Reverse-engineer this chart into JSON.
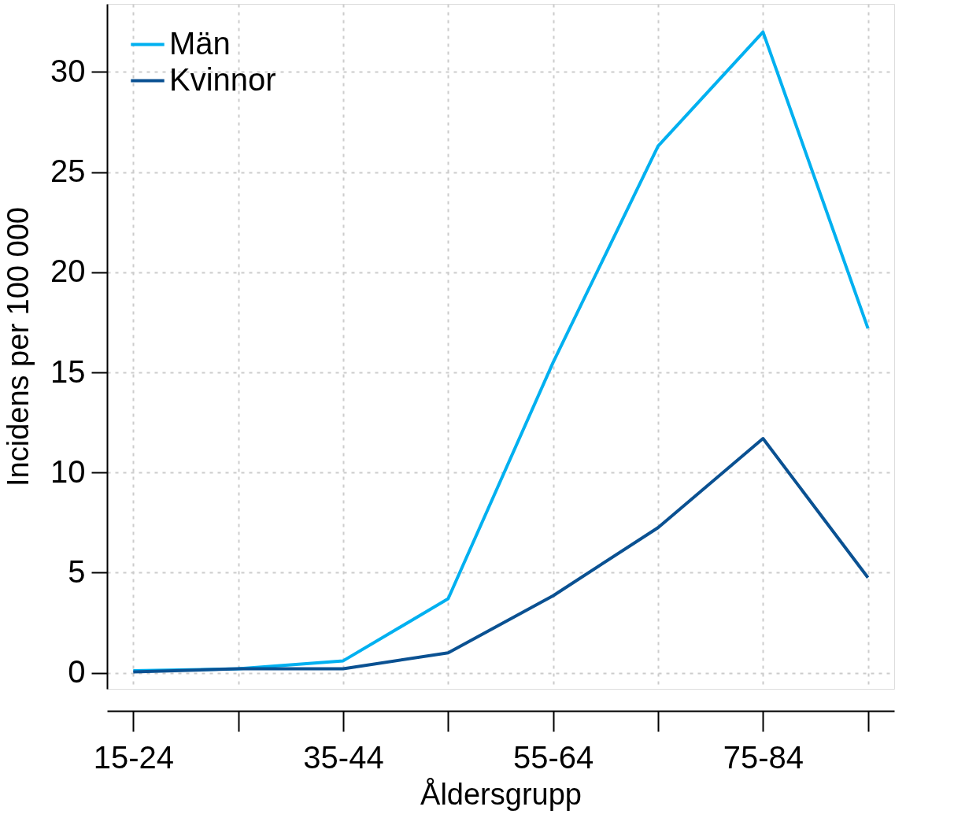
{
  "chart_data": {
    "type": "line",
    "xlabel": "Åldersgrupp",
    "ylabel": "Incidens per 100 000",
    "categories": [
      "15-24",
      null,
      "35-44",
      null,
      "55-64",
      null,
      "75-84",
      null
    ],
    "series": [
      {
        "name": "Män",
        "color": "#00b0f0",
        "values": [
          0.1,
          0.2,
          0.6,
          3.7,
          15.5,
          26.3,
          32.0,
          17.2
        ]
      },
      {
        "name": "Kvinnor",
        "color": "#0a5192",
        "values": [
          0.05,
          0.2,
          0.2,
          1.0,
          3.85,
          7.25,
          11.7,
          4.75
        ]
      }
    ],
    "ylim": [
      -0.8,
      33.4
    ],
    "yticks": [
      0,
      5,
      10,
      15,
      20,
      25,
      30
    ],
    "grid": true,
    "legend": "top left",
    "line_style": "solid",
    "marker": "none"
  }
}
